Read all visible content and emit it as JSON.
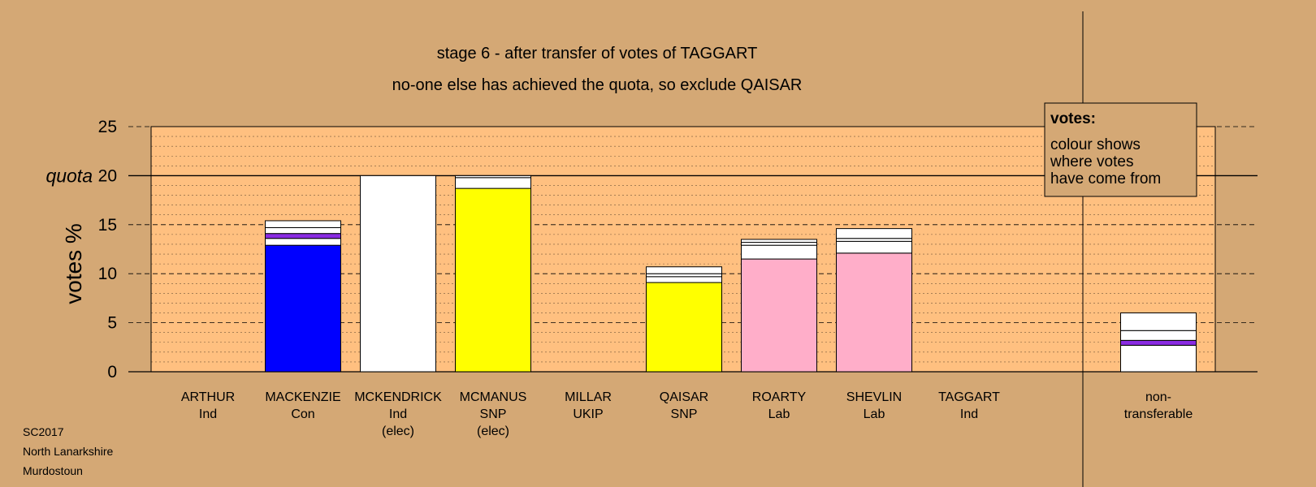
{
  "chart_data": {
    "type": "bar",
    "stacked": true,
    "title": "stage 6 - after transfer of votes of TAGGART",
    "subtitle": "no-one else has achieved the quota, so exclude QAISAR",
    "ylabel": "votes %",
    "ylim": [
      0,
      25
    ],
    "yticks": [
      0,
      5,
      10,
      15,
      20,
      25
    ],
    "quota": 20,
    "quota_label": "quota",
    "grid": true,
    "categories": [
      {
        "name": "ARTHUR",
        "party": "Ind",
        "note": ""
      },
      {
        "name": "MACKENZIE",
        "party": "Con",
        "note": ""
      },
      {
        "name": "MCKENDRICK",
        "party": "Ind",
        "note": "(elec)"
      },
      {
        "name": "MCMANUS",
        "party": "SNP",
        "note": "(elec)"
      },
      {
        "name": "MILLAR",
        "party": "UKIP",
        "note": ""
      },
      {
        "name": "QAISAR",
        "party": "SNP",
        "note": ""
      },
      {
        "name": "ROARTY",
        "party": "Lab",
        "note": ""
      },
      {
        "name": "SHEVLIN",
        "party": "Lab",
        "note": ""
      },
      {
        "name": "TAGGART",
        "party": "Ind",
        "note": ""
      },
      {
        "name": "non-",
        "party": "transferable",
        "note": ""
      }
    ],
    "segments": [
      [],
      [
        {
          "value": 12.9,
          "color": "#0000ff"
        },
        {
          "value": 0.7,
          "color": "#ffffff"
        },
        {
          "value": 0.5,
          "color": "#8a2be2"
        },
        {
          "value": 0.6,
          "color": "#ffffff"
        },
        {
          "value": 0.7,
          "color": "#ffffff"
        }
      ],
      [
        {
          "value": 20.0,
          "color": "#ffffff"
        }
      ],
      [
        {
          "value": 18.7,
          "color": "#ffff00"
        },
        {
          "value": 1.1,
          "color": "#ffffff"
        },
        {
          "value": 0.2,
          "color": "#ffffff"
        }
      ],
      [],
      [
        {
          "value": 9.1,
          "color": "#ffff00"
        },
        {
          "value": 0.6,
          "color": "#ffffff"
        },
        {
          "value": 0.3,
          "color": "#ffffff"
        },
        {
          "value": 0.7,
          "color": "#ffffff"
        }
      ],
      [
        {
          "value": 11.5,
          "color": "#ffaec9"
        },
        {
          "value": 1.4,
          "color": "#ffffff"
        },
        {
          "value": 0.3,
          "color": "#ffffff"
        },
        {
          "value": 0.3,
          "color": "#ffffff"
        }
      ],
      [
        {
          "value": 12.1,
          "color": "#ffaec9"
        },
        {
          "value": 1.2,
          "color": "#ffffff"
        },
        {
          "value": 0.3,
          "color": "#ffffff"
        },
        {
          "value": 1.0,
          "color": "#ffffff"
        }
      ],
      [],
      [
        {
          "value": 2.7,
          "color": "#ffffff"
        },
        {
          "value": 0.5,
          "color": "#8a2be2"
        },
        {
          "value": 1.0,
          "color": "#ffffff"
        },
        {
          "value": 1.8,
          "color": "#ffffff"
        }
      ]
    ],
    "legend": {
      "title": "votes:",
      "lines": [
        "colour shows",
        "where votes",
        "have come from"
      ],
      "placement": "top-right"
    }
  },
  "colors": {
    "background": "#d4a875",
    "plot_area": "#ffc080"
  },
  "footer": {
    "election": "SC2017",
    "council": "North Lanarkshire",
    "ward": "Murdostoun"
  }
}
